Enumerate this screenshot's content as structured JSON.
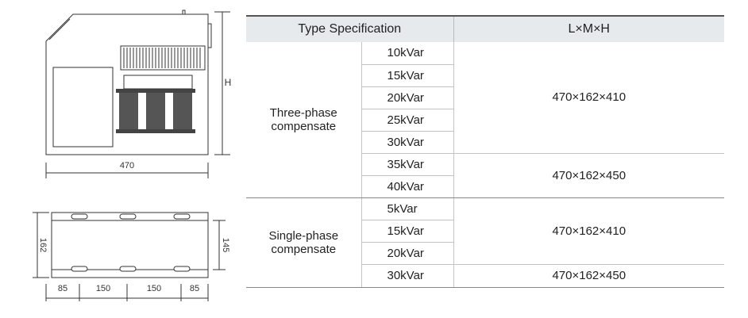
{
  "drawings": {
    "front": {
      "height_label": "H",
      "width_label": "470"
    },
    "top": {
      "depth_label": "162",
      "inner_label": "145",
      "spacings": [
        "85",
        "150",
        "150",
        "85"
      ]
    }
  },
  "table": {
    "headers": [
      "Type Specification",
      "L×M×H"
    ],
    "groups": [
      {
        "name": "Three-phase compensate",
        "sets": [
          {
            "ratings": [
              "10kVar",
              "15kVar",
              "20kVar",
              "25kVar",
              "30kVar"
            ],
            "size": "470×162×410"
          },
          {
            "ratings": [
              "35kVar",
              "40kVar"
            ],
            "size": "470×162×450"
          }
        ]
      },
      {
        "name": "Single-phase compensate",
        "sets": [
          {
            "ratings": [
              "5kVar",
              "15kVar",
              "20kVar"
            ],
            "size": "470×162×410"
          },
          {
            "ratings": [
              "30kVar"
            ],
            "size": "470×162×450"
          }
        ]
      }
    ]
  }
}
